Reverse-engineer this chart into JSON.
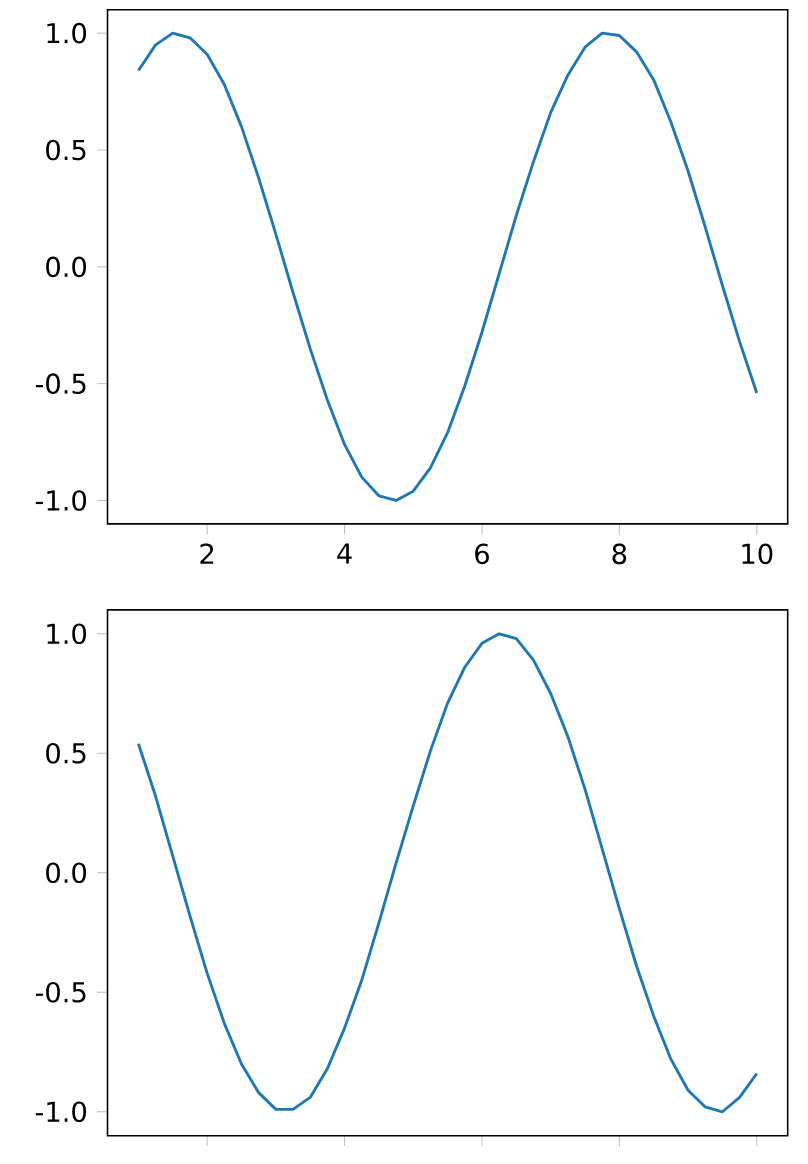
{
  "chart_data": [
    {
      "type": "line",
      "color": "#1f77b4",
      "xlim": [
        0.55,
        10.45
      ],
      "ylim": [
        -1.1,
        1.1
      ],
      "xticks": [
        2,
        4,
        6,
        8,
        10
      ],
      "yticks": [
        {
          "value": -1.0,
          "label": "-1.0"
        },
        {
          "value": -0.5,
          "label": "-0.5"
        },
        {
          "value": 0.0,
          "label": "0.0"
        },
        {
          "value": 0.5,
          "label": "0.5"
        },
        {
          "value": 1.0,
          "label": "1.0"
        }
      ],
      "x": [
        1.0,
        1.25,
        1.5,
        1.75,
        2.0,
        2.25,
        2.5,
        2.75,
        3.0,
        3.25,
        3.5,
        3.75,
        4.0,
        4.25,
        4.5,
        4.75,
        5.0,
        5.25,
        5.5,
        5.75,
        6.0,
        6.25,
        6.5,
        6.75,
        7.0,
        7.25,
        7.5,
        7.75,
        8.0,
        8.25,
        8.5,
        8.75,
        9.0,
        9.25,
        9.5,
        9.75,
        10.0
      ],
      "values": [
        0.84,
        0.95,
        1.0,
        0.98,
        0.91,
        0.78,
        0.6,
        0.38,
        0.14,
        -0.11,
        -0.35,
        -0.57,
        -0.76,
        -0.9,
        -0.98,
        -1.0,
        -0.96,
        -0.86,
        -0.71,
        -0.51,
        -0.28,
        -0.03,
        0.22,
        0.45,
        0.66,
        0.82,
        0.94,
        1.0,
        0.99,
        0.92,
        0.8,
        0.62,
        0.41,
        0.17,
        -0.08,
        -0.32,
        -0.54
      ]
    },
    {
      "type": "line",
      "color": "#1f77b4",
      "xlim": [
        0.55,
        10.45
      ],
      "ylim": [
        -1.1,
        1.1
      ],
      "xticks": [
        2,
        4,
        6,
        8,
        10
      ],
      "yticks": [
        {
          "value": -1.0,
          "label": "-1.0"
        },
        {
          "value": -0.5,
          "label": "-0.5"
        },
        {
          "value": 0.0,
          "label": "0.0"
        },
        {
          "value": 0.5,
          "label": "0.5"
        },
        {
          "value": 1.0,
          "label": "1.0"
        }
      ],
      "tick_labels": "y",
      "x": [
        1.0,
        1.25,
        1.5,
        1.75,
        2.0,
        2.25,
        2.5,
        2.75,
        3.0,
        3.25,
        3.5,
        3.75,
        4.0,
        4.25,
        4.5,
        4.75,
        5.0,
        5.25,
        5.5,
        5.75,
        6.0,
        6.25,
        6.5,
        6.75,
        7.0,
        7.25,
        7.5,
        7.75,
        8.0,
        8.25,
        8.5,
        8.75,
        9.0,
        9.25,
        9.5,
        9.75,
        10.0
      ],
      "values": [
        0.54,
        0.32,
        0.07,
        -0.18,
        -0.42,
        -0.63,
        -0.8,
        -0.92,
        -0.99,
        -0.99,
        -0.94,
        -0.82,
        -0.65,
        -0.45,
        -0.21,
        0.04,
        0.28,
        0.51,
        0.71,
        0.86,
        0.96,
        1.0,
        0.98,
        0.89,
        0.75,
        0.57,
        0.35,
        0.1,
        -0.15,
        -0.39,
        -0.6,
        -0.78,
        -0.91,
        -0.98,
        -1.0,
        -0.94,
        -0.84
      ]
    }
  ]
}
